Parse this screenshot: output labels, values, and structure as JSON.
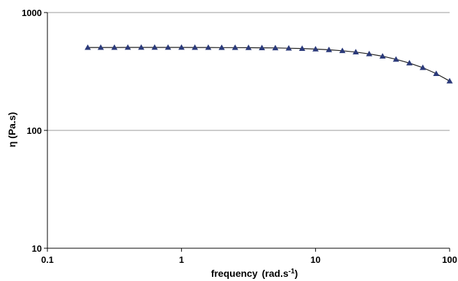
{
  "chart_data": {
    "type": "scatter",
    "x_scale": "log",
    "y_scale": "log",
    "xlim": [
      0.1,
      100
    ],
    "ylim": [
      10,
      1000
    ],
    "grid": {
      "y_major": true,
      "x_major": false
    },
    "legend": "none",
    "xlabel": "frequency",
    "xlabel_unit_base": "(rad.s",
    "xlabel_unit_sup": "-1",
    "xlabel_unit_close": ")",
    "ylabel": "η (Pa.s)",
    "x_ticks": [
      {
        "value": 0.1,
        "label": "0.1"
      },
      {
        "value": 1,
        "label": "1"
      },
      {
        "value": 10,
        "label": "10"
      },
      {
        "value": 100,
        "label": "100"
      }
    ],
    "y_ticks": [
      {
        "value": 10,
        "label": "10"
      },
      {
        "value": 100,
        "label": "100"
      },
      {
        "value": 1000,
        "label": "1000"
      }
    ],
    "colors": {
      "marker": "#2b3a7a",
      "line": "#1a1a1a",
      "grid": "#999999",
      "axis": "#000000"
    },
    "marker_shape": "triangle",
    "series": [
      {
        "x": [
          0.2,
          0.25,
          0.316,
          0.398,
          0.501,
          0.631,
          0.794,
          1.0,
          1.259,
          1.585,
          1.995,
          2.512,
          3.162,
          3.981,
          5.012,
          6.31,
          7.943,
          10.0,
          12.59,
          15.85,
          19.95,
          25.12,
          31.62,
          39.81,
          50.12,
          63.1,
          79.43,
          100
        ],
        "y": [
          505,
          505,
          505,
          506,
          506,
          506,
          506,
          506,
          505,
          505,
          504,
          504,
          503,
          502,
          501,
          498,
          495,
          490,
          483,
          474,
          462,
          446,
          426,
          401,
          373,
          341,
          303,
          262
        ]
      }
    ]
  }
}
